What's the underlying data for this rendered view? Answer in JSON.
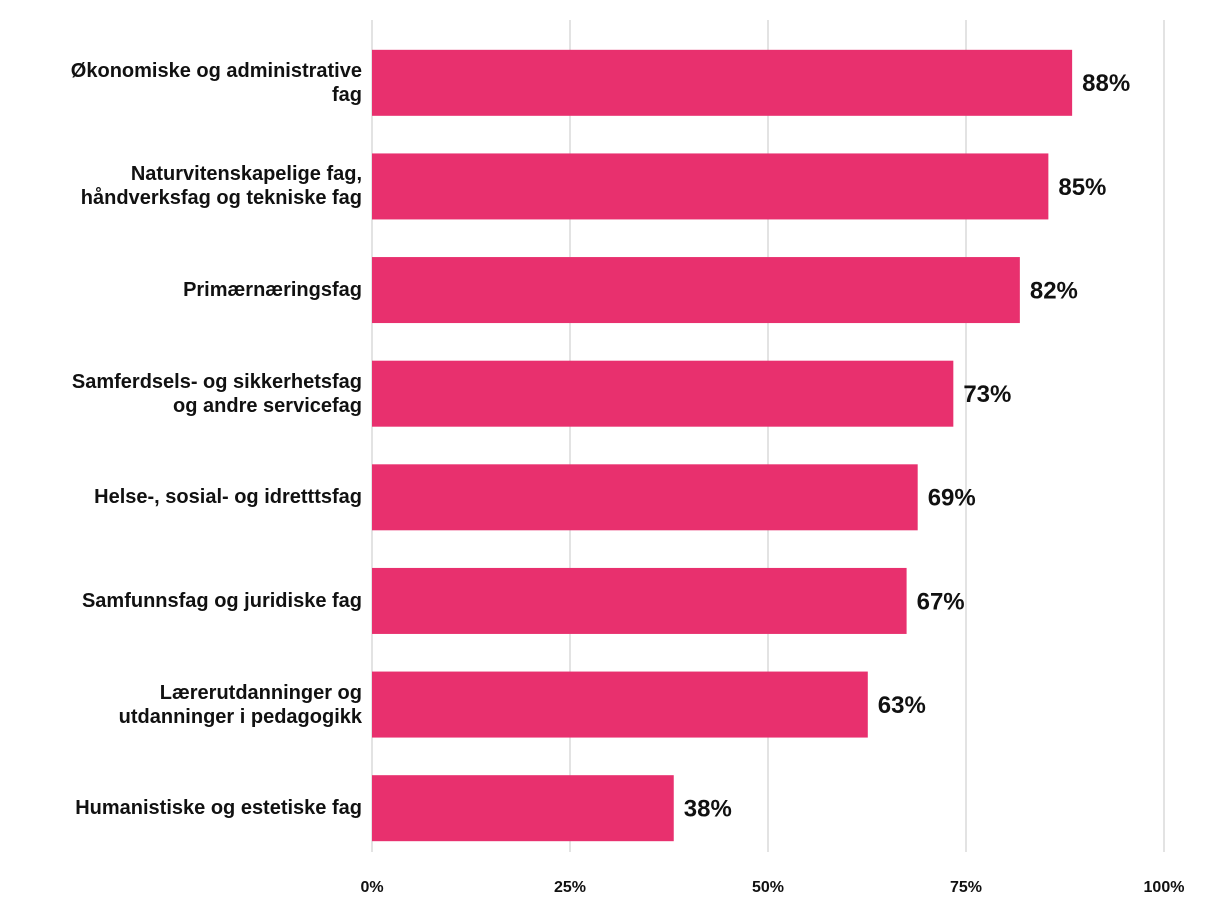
{
  "chart_data": {
    "type": "barh",
    "categories": [
      "Økonomiske og administrative\nfag",
      "Naturvitenskapelige fag,\nhåndverksfag og tekniske fag",
      "Primærnæringsfag",
      "Samferdsels- og sikkerhetsfag\nog andre servicefag",
      "Helse-, sosial- og idretttsfag",
      "Samfunnsfag og juridiske fag",
      "Lærerutdanninger og\nutdanninger i pedagogikk",
      "Humanistiske og estetiske fag"
    ],
    "values": [
      88.4,
      85.4,
      81.8,
      73.4,
      68.9,
      67.5,
      62.6,
      38.1
    ],
    "value_labels": [
      "88%",
      "85%",
      "82%",
      "73%",
      "69%",
      "67%",
      "63%",
      "38%"
    ],
    "color": "#e8306e",
    "xlim": [
      0,
      100
    ],
    "xticks": [
      {
        "value": 0,
        "label": "0%"
      },
      {
        "value": 25,
        "label": "25%"
      },
      {
        "value": 50,
        "label": "50%"
      },
      {
        "value": 75,
        "label": "75%"
      },
      {
        "value": 100,
        "label": "100%"
      }
    ],
    "grid": true
  }
}
